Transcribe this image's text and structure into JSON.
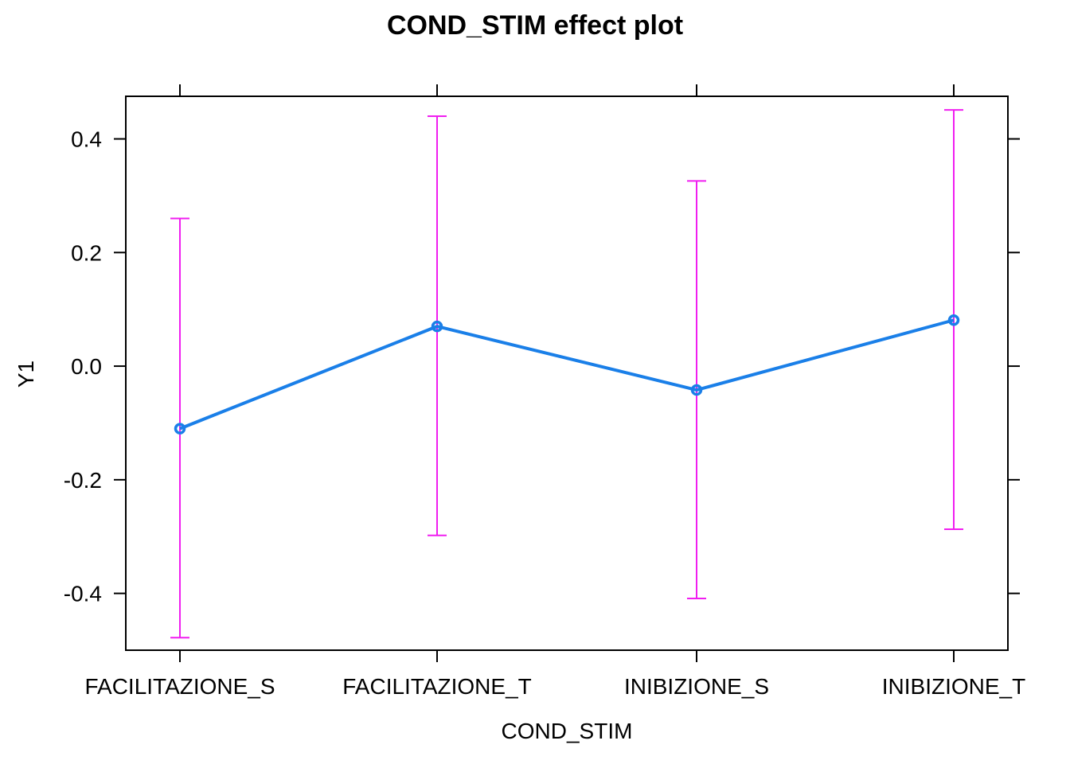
{
  "chart_data": {
    "type": "line",
    "title": "COND_STIM effect plot",
    "xlabel": "COND_STIM",
    "ylabel": "Y1",
    "categories": [
      "FACILITAZIONE_S",
      "FACILITAZIONE_T",
      "INIBIZIONE_S",
      "INIBIZIONE_T"
    ],
    "values": [
      -0.11,
      0.07,
      -0.042,
      0.081
    ],
    "lower": [
      -0.478,
      -0.298,
      -0.409,
      -0.287
    ],
    "upper": [
      0.26,
      0.44,
      0.326,
      0.451
    ],
    "ylim": [
      -0.5,
      0.475
    ],
    "yticks": [
      -0.4,
      -0.2,
      0.0,
      0.2,
      0.4
    ],
    "ytick_labels": [
      "-0.4",
      "-0.2",
      "0.0",
      "0.2",
      "0.4"
    ],
    "grid": false,
    "colors": {
      "line": "#1a7fe8",
      "errorbar": "#f01ef0",
      "axis": "#000000"
    }
  }
}
